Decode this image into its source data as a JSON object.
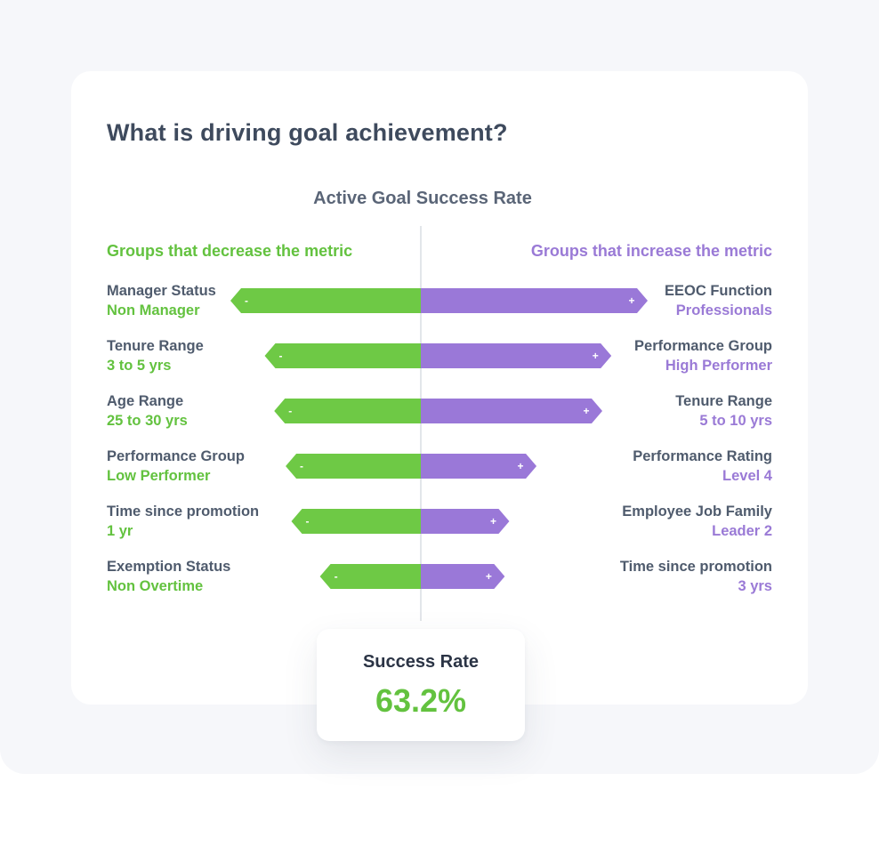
{
  "card": {
    "title": "What is driving goal achievement?"
  },
  "chart_data": {
    "type": "bar",
    "title": "Active Goal Success Rate",
    "left_heading": "Groups that decrease the metric",
    "right_heading": "Groups that increase the metric",
    "decrease_groups": [
      {
        "name": "Manager Status",
        "value": "Non Manager",
        "magnitude": 1.0,
        "sign": "-"
      },
      {
        "name": "Tenure Range",
        "value": "3 to 5 yrs",
        "magnitude": 0.82,
        "sign": "-"
      },
      {
        "name": "Age Range",
        "value": "25 to 30 yrs",
        "magnitude": 0.77,
        "sign": "-"
      },
      {
        "name": "Performance Group",
        "value": "Low Performer",
        "magnitude": 0.71,
        "sign": "-"
      },
      {
        "name": "Time since promotion",
        "value": "1 yr",
        "magnitude": 0.68,
        "sign": "-"
      },
      {
        "name": "Exemption Status",
        "value": "Non Overtime",
        "magnitude": 0.53,
        "sign": "-"
      }
    ],
    "increase_groups": [
      {
        "name": "EEOC Function",
        "value": "Professionals",
        "magnitude": 1.0,
        "sign": "+"
      },
      {
        "name": "Performance Group",
        "value": "High Performer",
        "magnitude": 0.84,
        "sign": "+"
      },
      {
        "name": "Tenure Range",
        "value": "5 to 10 yrs",
        "magnitude": 0.8,
        "sign": "+"
      },
      {
        "name": "Performance Rating",
        "value": "Level 4",
        "magnitude": 0.51,
        "sign": "+"
      },
      {
        "name": "Employee Job Family",
        "value": "Leader 2",
        "magnitude": 0.39,
        "sign": "+"
      },
      {
        "name": "Time since promotion",
        "value": "3 yrs",
        "magnitude": 0.37,
        "sign": "+"
      }
    ],
    "colors": {
      "decrease": "#6ec945",
      "increase": "#9a78d8",
      "axis": "#d9dde3"
    }
  },
  "summary": {
    "label": "Success Rate",
    "value": "63.2%"
  }
}
